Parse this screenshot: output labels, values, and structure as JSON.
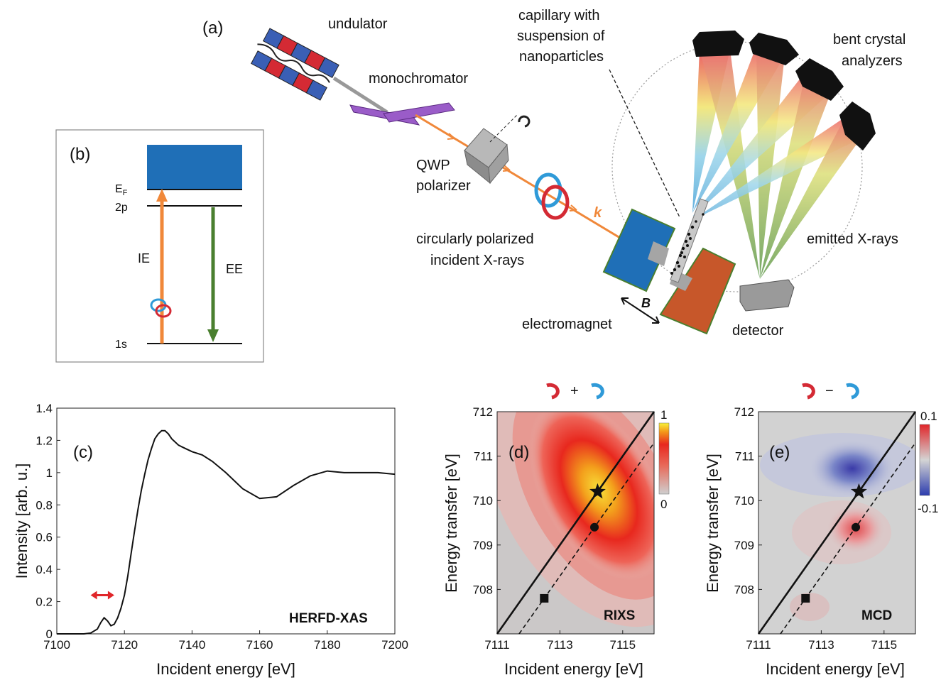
{
  "panel_a": {
    "tag": "(a)",
    "undulator": "undulator",
    "monochromator": "monochromator",
    "qwp_line1": "QWP",
    "qwp_line2": "polarizer",
    "capillary_line1": "capillary with",
    "capillary_line2": "suspension of",
    "capillary_line3": "nanoparticles",
    "analyzers_line1": "bent crystal",
    "analyzers_line2": "analyzers",
    "circ_line1": "circularly polarized",
    "circ_line2": "incident X-rays",
    "k_label": "k",
    "emitted": "emitted X-rays",
    "b_label": "B",
    "electromagnet": "electromagnet",
    "detector": "detector",
    "colors": {
      "beam": "#f0883a",
      "magnet_blue": "#1f6fb7",
      "magnet_orange": "#c7572a",
      "crystal": "#7a3fa0"
    }
  },
  "panel_b": {
    "tag": "(b)",
    "ef_main": "E",
    "ef_sub": "F",
    "level_2p": "2p",
    "level_1s": "1s",
    "ie": "IE",
    "ee": "EE",
    "colors": {
      "band": "#1f6fb7",
      "ie": "#f0883a",
      "ee": "#4a7f2f"
    }
  },
  "panel_c": {
    "tag": "(c)",
    "label": "HERFD-XAS",
    "xlabel": "Incident energy [eV]",
    "ylabel": "Intensity [arb. u.]",
    "xticks": [
      "7100",
      "7120",
      "7140",
      "7160",
      "7180",
      "7200"
    ],
    "yticks": [
      "0",
      "0.2",
      "0.4",
      "0.6",
      "0.8",
      "1",
      "1.2",
      "1.4"
    ]
  },
  "panel_d": {
    "tag": "(d)",
    "title_sign": "+",
    "label": "RIXS",
    "xlabel": "Incident energy [eV]",
    "ylabel": "Energy transfer [eV]",
    "xticks": [
      "7111",
      "7113",
      "7115"
    ],
    "yticks": [
      "708",
      "709",
      "710",
      "711",
      "712"
    ],
    "cbar_max": "1",
    "cbar_min": "0"
  },
  "panel_e": {
    "tag": "(e)",
    "title_sign": "−",
    "label": "MCD",
    "xlabel": "Incident energy [eV]",
    "ylabel": "Energy transfer [eV]",
    "xticks": [
      "7111",
      "7113",
      "7115"
    ],
    "yticks": [
      "708",
      "709",
      "710",
      "711",
      "712"
    ],
    "cbar_max": "0.1",
    "cbar_min": "-0.1"
  },
  "chart_data": [
    {
      "type": "line",
      "xlabel": "Incident energy [eV]",
      "ylabel": "Intensity [arb. u.]",
      "xlim": [
        7100,
        7200
      ],
      "ylim": [
        0,
        1.4
      ],
      "x": [
        7100,
        7108,
        7110,
        7112,
        7113,
        7114,
        7115,
        7116,
        7117,
        7118,
        7119,
        7120,
        7121,
        7122,
        7123,
        7124,
        7125,
        7126,
        7127,
        7128,
        7129,
        7130,
        7131,
        7132,
        7133,
        7134,
        7136,
        7138,
        7140,
        7143,
        7146,
        7150,
        7155,
        7160,
        7165,
        7170,
        7175,
        7180,
        7185,
        7190,
        7195,
        7200
      ],
      "y": [
        0,
        0,
        0.005,
        0.03,
        0.07,
        0.1,
        0.08,
        0.05,
        0.06,
        0.1,
        0.16,
        0.24,
        0.36,
        0.5,
        0.64,
        0.77,
        0.89,
        0.99,
        1.08,
        1.15,
        1.21,
        1.24,
        1.26,
        1.26,
        1.24,
        1.21,
        1.17,
        1.15,
        1.13,
        1.11,
        1.07,
        1.0,
        0.9,
        0.84,
        0.85,
        0.92,
        0.98,
        1.01,
        1.0,
        1.0,
        1.0,
        0.99
      ],
      "range_marker": [
        7110,
        7117
      ]
    },
    {
      "type": "heatmap",
      "xlabel": "Incident energy [eV]",
      "ylabel": "Energy transfer [eV]",
      "xlim": [
        7111,
        7116
      ],
      "ylim": [
        707,
        712
      ],
      "colorbar": [
        0,
        1
      ],
      "peak": {
        "x": 7114.2,
        "y": 710.2
      },
      "markers": [
        {
          "shape": "star",
          "x": 7114.2,
          "y": 710.2
        },
        {
          "shape": "circle",
          "x": 7114.1,
          "y": 709.4
        },
        {
          "shape": "square",
          "x": 7112.5,
          "y": 707.8
        }
      ]
    },
    {
      "type": "heatmap",
      "xlabel": "Incident energy [eV]",
      "ylabel": "Energy transfer [eV]",
      "xlim": [
        7111,
        7116
      ],
      "ylim": [
        707,
        712
      ],
      "colorbar": [
        -0.1,
        0.1
      ],
      "markers": [
        {
          "shape": "star",
          "x": 7114.2,
          "y": 710.2
        },
        {
          "shape": "circle",
          "x": 7114.1,
          "y": 709.4
        },
        {
          "shape": "square",
          "x": 7112.5,
          "y": 707.8
        }
      ]
    }
  ]
}
